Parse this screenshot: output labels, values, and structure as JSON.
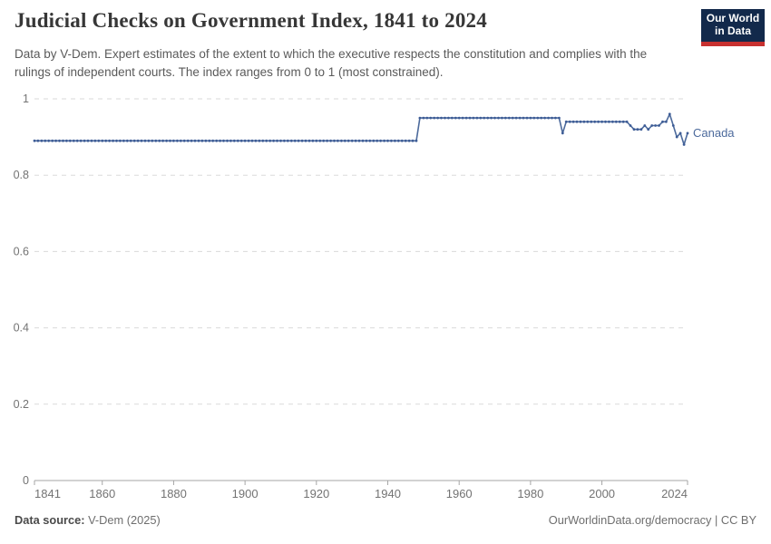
{
  "header": {
    "title": "Judicial Checks on Government Index, 1841 to 2024",
    "subtitle": "Data by V-Dem. Expert estimates of the extent to which the executive respects the constitution and complies with the rulings of independent courts. The index ranges from 0 to 1 (most constrained).",
    "logo": {
      "line1": "Our World",
      "line2": "in Data"
    }
  },
  "footer": {
    "source_label": "Data source:",
    "source_value": "V-Dem (2025)",
    "attribution": "OurWorldinData.org/democracy | CC BY"
  },
  "chart_data": {
    "type": "line",
    "title": "Judicial Checks on Government Index, 1841 to 2024",
    "xlabel": "",
    "ylabel": "",
    "x_range": [
      1841,
      2024
    ],
    "y_range": [
      0,
      1
    ],
    "x_ticks": [
      1841,
      1860,
      1880,
      1900,
      1920,
      1940,
      1960,
      1980,
      2000,
      2024
    ],
    "y_ticks": [
      0,
      0.2,
      0.4,
      0.6,
      0.8,
      1
    ],
    "grid": "dashed horizontal gridlines",
    "legend_position": "series label at line end, right side",
    "sampling": "annual markers; values interpolated linearly between listed breakpoints",
    "series": [
      {
        "name": "Canada",
        "breakpoints": [
          [
            1841,
            0.89
          ],
          [
            1948,
            0.89
          ],
          [
            1949,
            0.95
          ],
          [
            1988,
            0.95
          ],
          [
            1989,
            0.91
          ],
          [
            1990,
            0.94
          ],
          [
            2007,
            0.94
          ],
          [
            2008,
            0.93
          ],
          [
            2009,
            0.92
          ],
          [
            2011,
            0.92
          ],
          [
            2012,
            0.93
          ],
          [
            2013,
            0.92
          ],
          [
            2014,
            0.93
          ],
          [
            2016,
            0.93
          ],
          [
            2017,
            0.94
          ],
          [
            2018,
            0.94
          ],
          [
            2019,
            0.96
          ],
          [
            2020,
            0.93
          ],
          [
            2021,
            0.9
          ],
          [
            2022,
            0.91
          ],
          [
            2023,
            0.88
          ],
          [
            2024,
            0.91
          ]
        ]
      }
    ],
    "colors": {
      "line": "#4c6a9c",
      "marker": "#3d5c96",
      "entity_label": "#4c6a9c",
      "grid": "#dadada",
      "axis": "#a6a6a6",
      "tick_label": "#737373",
      "logo_bg": "#12294b",
      "logo_red": "#c7302f"
    }
  }
}
